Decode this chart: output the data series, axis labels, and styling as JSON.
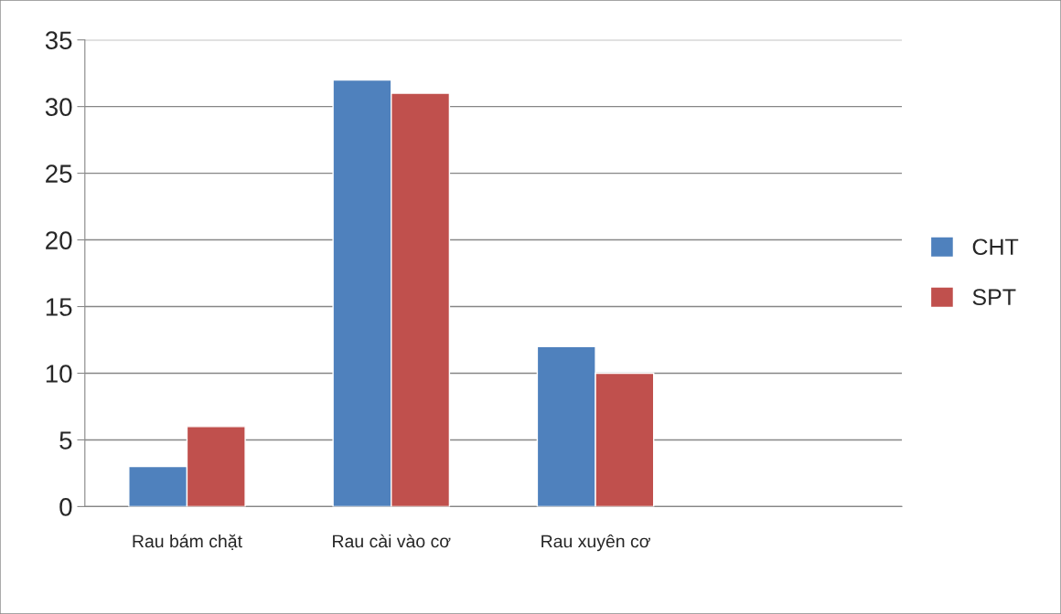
{
  "chart_data": {
    "type": "bar",
    "categories": [
      "Rau bám chặt",
      "Rau cài vào cơ",
      "Rau xuyên cơ",
      null
    ],
    "series": [
      {
        "name": "CHT",
        "color": "#4f81bd",
        "values": [
          3,
          32,
          12,
          null
        ]
      },
      {
        "name": "SPT",
        "color": "#c0504d",
        "values": [
          6,
          31,
          10,
          null
        ]
      }
    ],
    "ylim": [
      0,
      35
    ],
    "yticks": [
      0,
      5,
      10,
      15,
      20,
      25,
      30,
      35
    ],
    "grid": "y",
    "legend": "right"
  }
}
